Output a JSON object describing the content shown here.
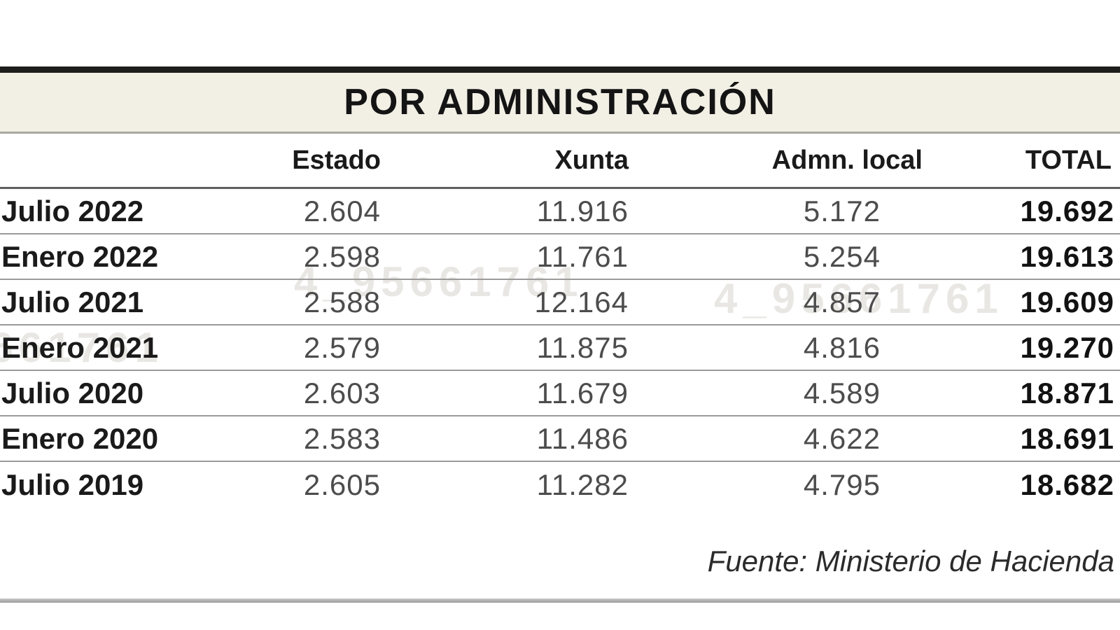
{
  "title": "POR ADMINISTRACIÓN",
  "source": "Fuente: Ministerio de Hacienda",
  "watermark": "4_95661761",
  "columns": {
    "estado": "Estado",
    "xunta": "Xunta",
    "local": "Admn. local",
    "total": "TOTAL"
  },
  "table": {
    "rows": [
      {
        "label": "Julio 2022",
        "estado": "2.604",
        "xunta": "11.916",
        "local": "5.172",
        "total": "19.692"
      },
      {
        "label": "Enero 2022",
        "estado": "2.598",
        "xunta": "11.761",
        "local": "5.254",
        "total": "19.613"
      },
      {
        "label": "Julio 2021",
        "estado": "2.588",
        "xunta": "12.164",
        "local": "4.857",
        "total": "19.609"
      },
      {
        "label": "Enero 2021",
        "estado": "2.579",
        "xunta": "11.875",
        "local": "4.816",
        "total": "19.270"
      },
      {
        "label": "Julio 2020",
        "estado": "2.603",
        "xunta": "11.679",
        "local": "4.589",
        "total": "18.871"
      },
      {
        "label": "Enero 2020",
        "estado": "2.583",
        "xunta": "11.486",
        "local": "4.622",
        "total": "18.691"
      },
      {
        "label": "Julio 2019",
        "estado": "2.605",
        "xunta": "11.282",
        "local": "4.795",
        "total": "18.682"
      }
    ]
  },
  "colors": {
    "band_background": "#f2efe5",
    "top_bar": "#1e1e1c",
    "row_separator": "#9b9b9b",
    "value_gray": "#4c4c4c",
    "text_black": "#141414"
  },
  "chart_data": {
    "type": "table",
    "title": "POR ADMINISTRACIÓN",
    "categories": [
      "Julio 2022",
      "Enero 2022",
      "Julio 2021",
      "Enero 2021",
      "Julio 2020",
      "Enero 2020",
      "Julio 2019"
    ],
    "series": [
      {
        "name": "Estado",
        "values": [
          2604,
          2598,
          2588,
          2579,
          2603,
          2583,
          2605
        ]
      },
      {
        "name": "Xunta",
        "values": [
          11916,
          11761,
          12164,
          11875,
          11679,
          11486,
          11282
        ]
      },
      {
        "name": "Admn. local",
        "values": [
          5172,
          5254,
          4857,
          4816,
          4589,
          4622,
          4795
        ]
      },
      {
        "name": "TOTAL",
        "values": [
          19692,
          19613,
          19609,
          19270,
          18871,
          18691,
          18682
        ]
      }
    ],
    "number_format": "thousands separated with dot (es-ES)",
    "source": "Fuente: Ministerio de Hacienda"
  }
}
